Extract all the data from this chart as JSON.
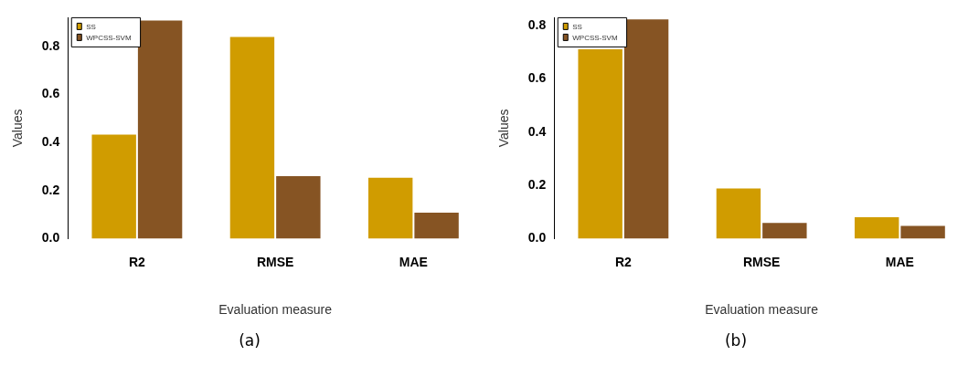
{
  "chart_data": [
    {
      "type": "bar",
      "xlabel": "Evaluation measure",
      "ylabel": "Values",
      "categories": [
        "R2",
        "RMSE",
        "MAE"
      ],
      "series": [
        {
          "name": "SS",
          "color": "#d09c00",
          "values": [
            0.437,
            0.844,
            0.257
          ]
        },
        {
          "name": "WPCSS-SVM",
          "color": "#865423",
          "values": [
            0.912,
            0.264,
            0.112
          ]
        }
      ],
      "ylim": [
        0,
        0.92
      ],
      "yticks": [
        {
          "value": 0,
          "label": "0.0"
        },
        {
          "value": 0.2,
          "label": "0.2"
        },
        {
          "value": 0.4,
          "label": "0.4"
        },
        {
          "value": 0.6,
          "label": "0.6"
        },
        {
          "value": 0.8,
          "label": "0.8"
        }
      ],
      "grid": false,
      "legend": "top left",
      "annotations": [
        "(a)"
      ]
    },
    {
      "type": "bar",
      "xlabel": "Evaluation measure",
      "ylabel": "Values",
      "categories": [
        "R2",
        "RMSE",
        "MAE"
      ],
      "series": [
        {
          "name": "SS",
          "color": "#d09c00",
          "values": [
            0.715,
            0.192,
            0.084
          ]
        },
        {
          "name": "WPCSS-SVM",
          "color": "#865423",
          "values": [
            0.827,
            0.062,
            0.051
          ]
        }
      ],
      "ylim": [
        0,
        0.83
      ],
      "yticks": [
        {
          "value": 0,
          "label": "0.0"
        },
        {
          "value": 0.2,
          "label": "0.2"
        },
        {
          "value": 0.4,
          "label": "0.4"
        },
        {
          "value": 0.6,
          "label": "0.6"
        },
        {
          "value": 0.8,
          "label": "0.8"
        }
      ],
      "grid": false,
      "legend": "top left",
      "annotations": [
        "(b)"
      ]
    }
  ]
}
